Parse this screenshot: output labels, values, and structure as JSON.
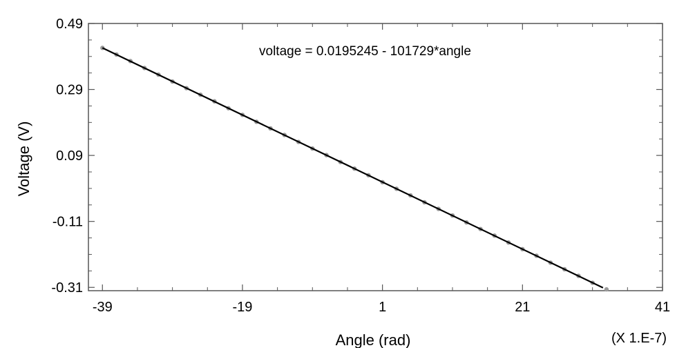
{
  "chart_data": {
    "type": "scatter",
    "xlabel": "Angle (rad)",
    "ylabel": "Voltage (V)",
    "x_multiplier_label": "(X 1.E-7)",
    "annotation": "voltage = 0.0195245 - 101729*angle",
    "x_ticks": [
      "-39",
      "-19",
      "1",
      "21",
      "41"
    ],
    "y_ticks": [
      "0.49",
      "0.29",
      "0.09",
      "-0.11",
      "-0.31"
    ],
    "xlim": [
      -41,
      41
    ],
    "ylim": [
      -0.32,
      0.49
    ],
    "grid": false,
    "colors": {
      "points": "#9a9a9a",
      "fit_line": "#000000",
      "frame": "#555555"
    },
    "series": [
      {
        "kind": "points",
        "x": [
          -39.0,
          -37.0,
          -35.0,
          -33.0,
          -31.0,
          -29.0,
          -27.0,
          -25.0,
          -23.0,
          -21.0,
          -19.0,
          -17.0,
          -15.0,
          -13.0,
          -11.0,
          -9.0,
          -7.0,
          -5.0,
          -3.0,
          -1.0,
          1.0,
          3.0,
          5.0,
          7.0,
          9.0,
          11.0,
          13.0,
          15.0,
          17.0,
          19.0,
          21.0,
          23.0,
          25.0,
          27.0,
          29.0,
          31.0,
          33.0
        ],
        "y": [
          0.416,
          0.396,
          0.376,
          0.355,
          0.335,
          0.314,
          0.294,
          0.274,
          0.254,
          0.233,
          0.213,
          0.192,
          0.172,
          0.152,
          0.131,
          0.111,
          0.091,
          0.07,
          0.05,
          0.03,
          0.009,
          -0.011,
          -0.031,
          -0.052,
          -0.072,
          -0.092,
          -0.113,
          -0.133,
          -0.153,
          -0.174,
          -0.194,
          -0.214,
          -0.235,
          -0.255,
          -0.275,
          -0.296,
          -0.316
        ]
      },
      {
        "kind": "fit_line",
        "x": [
          -39.0,
          32.5
        ],
        "y": [
          0.416,
          -0.311
        ]
      }
    ]
  }
}
